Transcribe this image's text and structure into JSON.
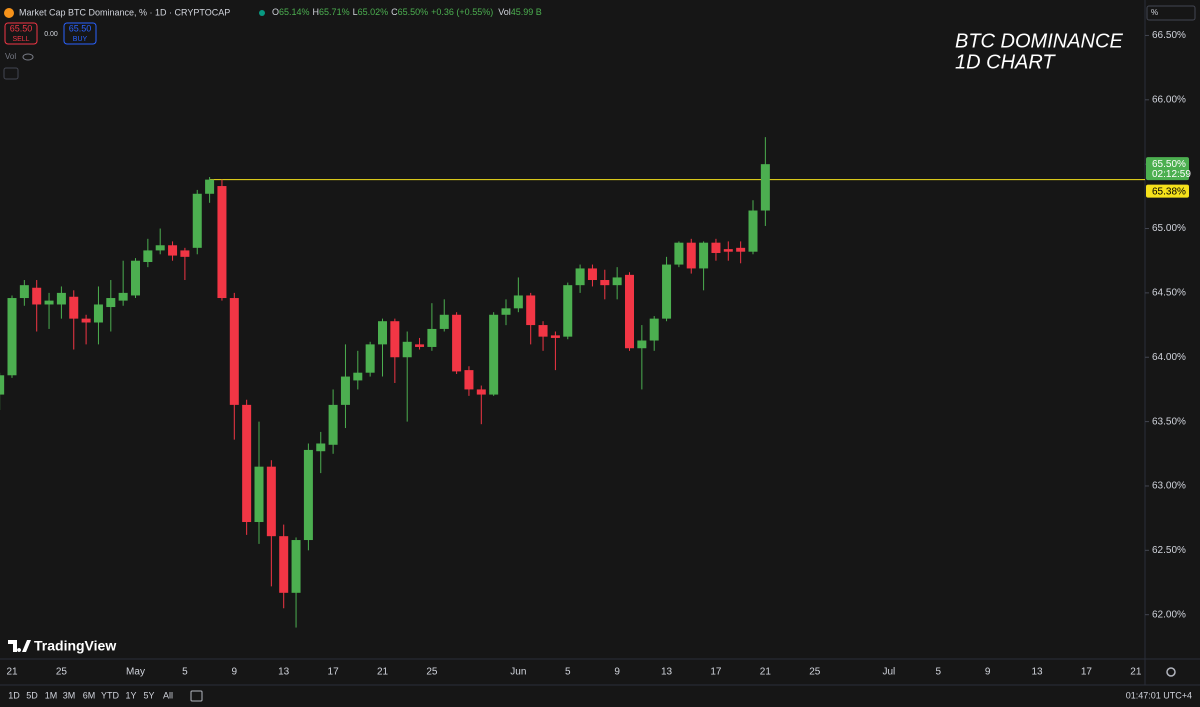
{
  "header": {
    "symbol": "Market Cap BTC Dominance, % · 1D · CRYPTOCAP",
    "o_label": "O",
    "o_value": "65.14%",
    "h_label": "H",
    "h_value": "65.71%",
    "l_label": "L",
    "l_value": "65.02%",
    "c_label": "C",
    "c_value": "65.50%",
    "change": "+0.36 (+0.55%)",
    "vol_label": "Vol",
    "vol_value": "45.99 B"
  },
  "trade": {
    "sell_price": "65.50",
    "sell": "SELL",
    "spread": "0.00",
    "buy_price": "65.50",
    "buy": "BUY"
  },
  "indicator": "Vol",
  "scale_unit": "%",
  "logo": "TradingView",
  "toolbar": {
    "ranges": [
      "1D",
      "5D",
      "1M",
      "3M",
      "6M",
      "YTD",
      "1Y",
      "5Y",
      "All"
    ],
    "clock": "01:47:01 UTC+4"
  },
  "chart_data": {
    "type": "candlestick",
    "annotation": [
      "BTC DOMINANCE",
      "1D CHART"
    ],
    "categories": [
      null,
      "21",
      null,
      null,
      null,
      "25",
      null,
      null,
      null,
      null,
      null,
      "May",
      null,
      null,
      null,
      "5",
      null,
      null,
      null,
      "9",
      null,
      null,
      null,
      "13",
      null,
      null,
      null,
      "17",
      null,
      null,
      null,
      "21",
      null,
      null,
      null,
      "25",
      null,
      null,
      null,
      null,
      null,
      null,
      "Jun",
      null,
      null,
      null,
      "5",
      null,
      null,
      null,
      "9",
      null,
      null,
      null,
      "13",
      null,
      null,
      null,
      "17",
      null,
      null,
      null,
      "21",
      null,
      null,
      null,
      "25",
      null,
      null,
      null,
      null,
      null,
      "Jul",
      null,
      null,
      null,
      "5",
      null,
      null,
      null,
      "9",
      null,
      null,
      null,
      "13",
      null,
      null,
      null,
      "17",
      null,
      null,
      null,
      "21",
      null
    ],
    "open": [
      63.71,
      63.86,
      64.46,
      64.54,
      64.41,
      64.41,
      64.47,
      64.3,
      64.27,
      64.39,
      64.44,
      64.48,
      64.74,
      64.83,
      64.87,
      64.83,
      64.85,
      65.27,
      65.33,
      64.46,
      63.63,
      62.72,
      63.15,
      62.61,
      62.17,
      62.58,
      63.27,
      63.32,
      63.63,
      63.82,
      63.88,
      64.1,
      64.28,
      64.0,
      64.1,
      64.08,
      64.22,
      64.33,
      63.9,
      63.75,
      63.71,
      64.33,
      64.38,
      64.48,
      64.25,
      64.17,
      64.16,
      64.56,
      64.69,
      64.6,
      64.56,
      64.64,
      64.07,
      64.13,
      64.3,
      64.72,
      64.89,
      64.69,
      64.89,
      64.84,
      64.85,
      64.82,
      65.14,
      null,
      null,
      null,
      null,
      null,
      null,
      null,
      null,
      null,
      null,
      null,
      null,
      null,
      null,
      null,
      null,
      null,
      null,
      null,
      null,
      null,
      null,
      null,
      null,
      null,
      null,
      null,
      null,
      null,
      null,
      null
    ],
    "high": [
      63.88,
      64.48,
      64.6,
      64.6,
      64.5,
      64.55,
      64.52,
      64.33,
      64.55,
      64.6,
      64.75,
      64.77,
      64.92,
      65.0,
      64.9,
      64.85,
      65.3,
      65.4,
      65.38,
      64.5,
      63.67,
      63.5,
      63.2,
      62.7,
      62.6,
      63.33,
      63.42,
      63.75,
      64.1,
      64.05,
      64.12,
      64.3,
      64.3,
      64.2,
      64.15,
      64.42,
      64.45,
      64.35,
      63.93,
      63.78,
      64.35,
      64.45,
      64.62,
      64.5,
      64.28,
      64.2,
      64.58,
      64.72,
      64.72,
      64.68,
      64.7,
      64.66,
      64.25,
      64.32,
      64.78,
      64.9,
      64.92,
      64.9,
      64.92,
      64.9,
      64.9,
      65.22,
      65.71,
      null,
      null,
      null,
      null,
      null,
      null,
      null,
      null,
      null,
      null,
      null,
      null,
      null,
      null,
      null,
      null,
      null,
      null,
      null,
      null,
      null,
      null,
      null,
      null,
      null,
      null,
      null,
      null,
      null,
      null,
      null
    ],
    "low": [
      63.59,
      63.84,
      64.4,
      64.2,
      64.22,
      64.3,
      64.06,
      64.1,
      64.1,
      64.2,
      64.4,
      64.46,
      64.7,
      64.8,
      64.75,
      64.6,
      64.8,
      65.2,
      64.44,
      63.36,
      62.62,
      62.55,
      62.22,
      62.05,
      61.9,
      62.5,
      63.1,
      63.25,
      63.45,
      63.75,
      63.85,
      63.85,
      63.8,
      63.5,
      64.06,
      64.05,
      64.2,
      63.87,
      63.7,
      63.48,
      63.7,
      64.25,
      64.35,
      64.1,
      64.05,
      63.9,
      64.14,
      64.5,
      64.55,
      64.45,
      64.45,
      64.05,
      63.75,
      64.05,
      64.28,
      64.7,
      64.65,
      64.52,
      64.75,
      64.75,
      64.73,
      64.8,
      65.02,
      null,
      null,
      null,
      null,
      null,
      null,
      null,
      null,
      null,
      null,
      null,
      null,
      null,
      null,
      null,
      null,
      null,
      null,
      null,
      null,
      null,
      null,
      null,
      null,
      null,
      null,
      null,
      null,
      null,
      null,
      null
    ],
    "close": [
      63.86,
      64.46,
      64.56,
      64.41,
      64.44,
      64.5,
      64.3,
      64.27,
      64.41,
      64.46,
      64.5,
      64.75,
      64.83,
      64.87,
      64.79,
      64.78,
      65.27,
      65.38,
      64.46,
      63.63,
      62.72,
      63.15,
      62.61,
      62.17,
      62.58,
      63.28,
      63.33,
      63.63,
      63.85,
      63.88,
      64.1,
      64.28,
      64.0,
      64.12,
      64.08,
      64.22,
      64.33,
      63.89,
      63.75,
      63.71,
      64.33,
      64.38,
      64.48,
      64.25,
      64.16,
      64.15,
      64.56,
      64.69,
      64.6,
      64.56,
      64.62,
      64.07,
      64.13,
      64.3,
      64.72,
      64.89,
      64.69,
      64.89,
      64.81,
      64.82,
      64.82,
      65.14,
      65.5,
      null,
      null,
      null,
      null,
      null,
      null,
      null,
      null,
      null,
      null,
      null,
      null,
      null,
      null,
      null,
      null,
      null,
      null,
      null,
      null,
      null,
      null,
      null,
      null,
      null,
      null,
      null,
      null,
      null,
      null,
      null
    ],
    "up_color": "#4caf50",
    "down_color": "#f23645",
    "ylim": [
      61.85,
      66.62
    ],
    "yticks": [
      {
        "value": 62,
        "label": "62.00%"
      },
      {
        "value": 62.5,
        "label": "62.50%"
      },
      {
        "value": 63,
        "label": "63.00%"
      },
      {
        "value": 63.5,
        "label": "63.50%"
      },
      {
        "value": 64,
        "label": "64.00%"
      },
      {
        "value": 64.5,
        "label": "64.50%"
      },
      {
        "value": 65,
        "label": "65.00%"
      },
      {
        "value": 65.5,
        "label": "65.50%"
      },
      {
        "value": 66,
        "label": "66.00%"
      },
      {
        "value": 66.5,
        "label": "66.50%"
      }
    ],
    "grid": false,
    "last_price": {
      "value": 65.5,
      "label": "65.50%",
      "countdown": "02:12:59",
      "color": "#4caf50"
    },
    "level_line": {
      "value": 65.38,
      "label": "65.38%",
      "color": "#f5e11b"
    }
  }
}
